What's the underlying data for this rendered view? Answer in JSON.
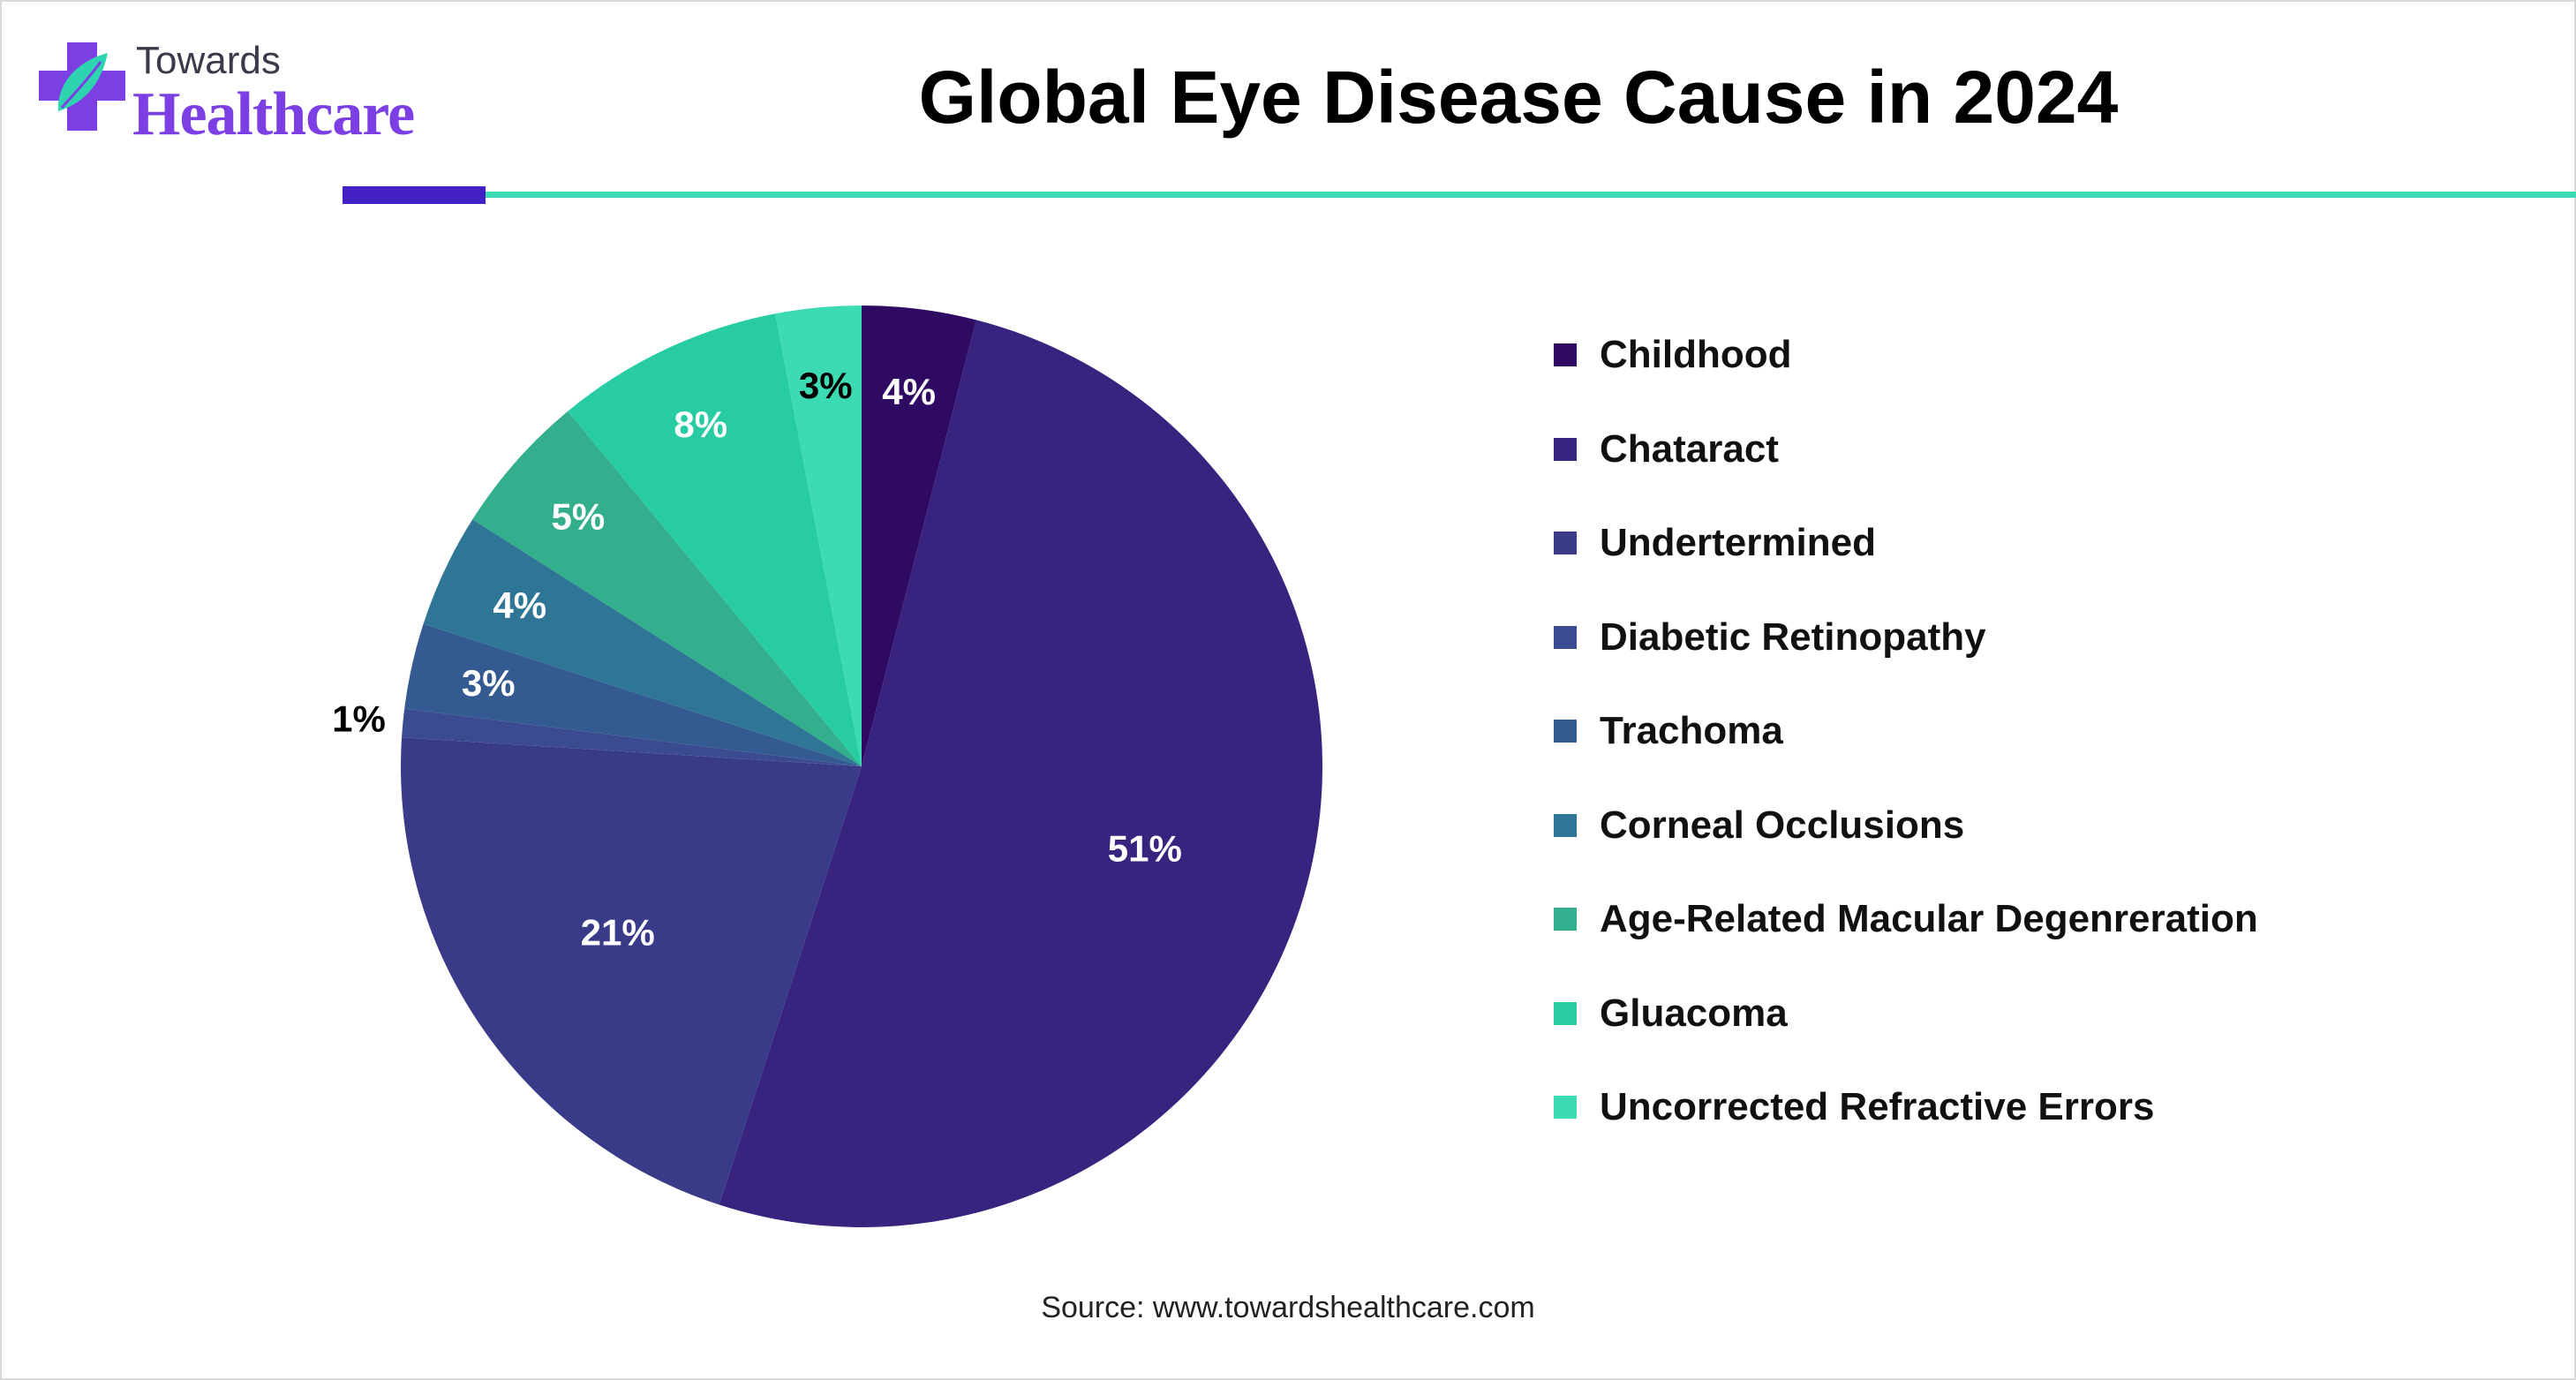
{
  "brand": {
    "logo_small": "Towards",
    "logo_large": "Healthcare",
    "colors": {
      "purple": "#7b3fe4",
      "teal": "#2ed3b0",
      "rule_dark": "#4320c4",
      "rule_teal": "#3dd9b4"
    }
  },
  "title": "Global Eye Disease Cause in 2024",
  "source": "Source: www.towardshealthcare.com",
  "chart_data": {
    "type": "pie",
    "title": "Global Eye Disease Cause in 2024",
    "legend_position": "right",
    "start_angle_deg": 0,
    "direction": "clockwise",
    "slices": [
      {
        "label": "Childhood",
        "value": 4,
        "display": "4%",
        "color": "#2e0a63",
        "label_color": "#ffffff"
      },
      {
        "label": "Chataract",
        "value": 51,
        "display": "51%",
        "color": "#38237f",
        "label_color": "#ffffff"
      },
      {
        "label": "Undertermined",
        "value": 21,
        "display": "21%",
        "color": "#3a3b88",
        "label_color": "#ffffff"
      },
      {
        "label": "Diabetic Retinopathy",
        "value": 1,
        "display": "1%",
        "color": "#3b4b8f",
        "label_color": "#000000",
        "outside": true
      },
      {
        "label": "Trachoma",
        "value": 3,
        "display": "3%",
        "color": "#335a91",
        "label_color": "#ffffff"
      },
      {
        "label": "Corneal Occlusions",
        "value": 4,
        "display": "4%",
        "color": "#2e7596",
        "label_color": "#ffffff"
      },
      {
        "label": "Age-Related Macular Degenreration",
        "value": 5,
        "display": "5%",
        "color": "#34af8d",
        "label_color": "#ffffff"
      },
      {
        "label": "Gluacoma",
        "value": 8,
        "display": "8%",
        "color": "#28cca3",
        "label_color": "#ffffff"
      },
      {
        "label": "Uncorrected Refractive Errors",
        "value": 3,
        "display": "3%",
        "color": "#3ddbb3",
        "label_color": "#000000"
      }
    ]
  }
}
